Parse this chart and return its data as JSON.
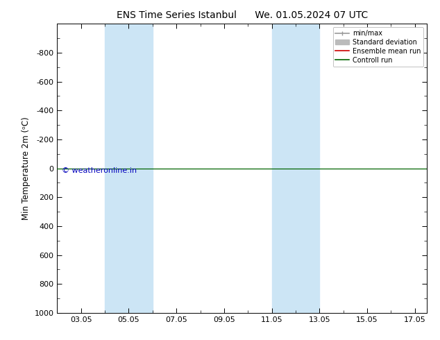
{
  "title": "ENS Time Series Istanbul      We. 01.05.2024 07 UTC",
  "ylabel": "Min Temperature 2m (ᵒC)",
  "ylim_bottom": 1000,
  "ylim_top": -1000,
  "yticks": [
    -800,
    -600,
    -400,
    -200,
    0,
    200,
    400,
    600,
    800,
    1000
  ],
  "xlim": [
    2.0,
    17.5
  ],
  "xtick_positions": [
    3,
    5,
    7,
    9,
    11,
    13,
    15,
    17
  ],
  "xtick_labels": [
    "03.05",
    "05.05",
    "07.05",
    "09.05",
    "11.05",
    "13.05",
    "15.05",
    "17.05"
  ],
  "blue_band_ranges": [
    [
      4.0,
      5.0
    ],
    [
      5.0,
      6.0
    ],
    [
      11.0,
      12.0
    ],
    [
      12.0,
      13.0
    ]
  ],
  "blue_band_color": "#cce5f5",
  "control_run_color": "#006400",
  "ensemble_mean_color": "#cc0000",
  "copyright_text": "© weatheronline.in",
  "copyright_color": "#0000bb",
  "legend_labels": [
    "min/max",
    "Standard deviation",
    "Ensemble mean run",
    "Controll run"
  ],
  "legend_line_colors": [
    "#999999",
    "#bbbbbb",
    "#cc0000",
    "#006400"
  ],
  "background_color": "#ffffff"
}
